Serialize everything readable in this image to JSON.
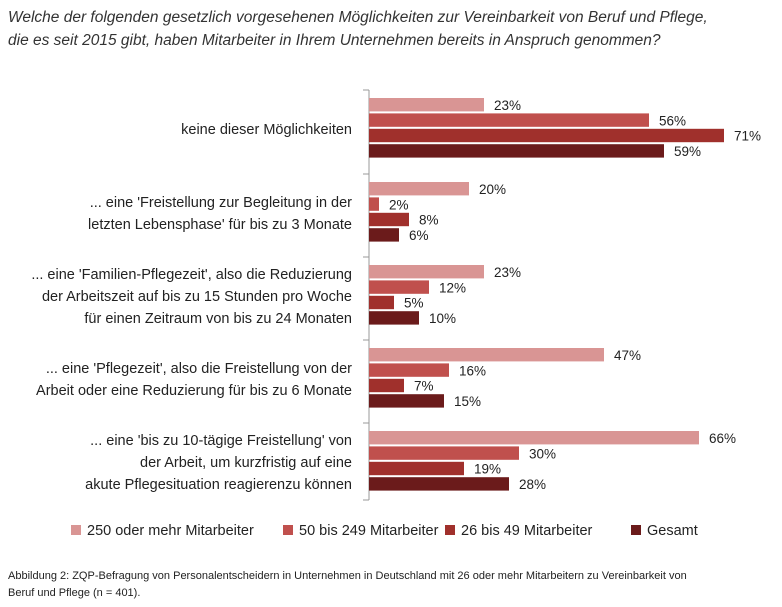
{
  "chart_data": {
    "type": "bar",
    "orientation": "horizontal",
    "title_lines": [
      "Welche der folgenden gesetzlich vorgesehenen Möglichkeiten zur Vereinbarkeit von Beruf und Pflege,",
      "die es seit 2015 gibt, haben Mitarbeiter in Ihrem Unternehmen bereits in Anspruch genommen?"
    ],
    "categories": [
      [
        "keine dieser Möglichkeiten"
      ],
      [
        "... eine 'Freistellung zur Begleitung in der",
        "letzten Lebensphase' für bis zu 3 Monate"
      ],
      [
        "... eine 'Familien-Pflegezeit', also die Reduzierung",
        "der Arbeitszeit auf bis zu 15 Stunden pro Woche",
        "für einen Zeitraum von bis zu 24 Monaten"
      ],
      [
        "... eine 'Pflegezeit', also die Freistellung von der",
        "Arbeit oder eine Reduzierung für bis zu 6 Monate"
      ],
      [
        "... eine 'bis zu 10-tägige Freistellung' von",
        "der Arbeit, um kurzfristig auf eine",
        "akute Pflegesituation reagierenzu können"
      ]
    ],
    "series": [
      {
        "name": "250 oder mehr Mitarbeiter",
        "color": "#d99594",
        "values": [
          23,
          20,
          23,
          47,
          66
        ]
      },
      {
        "name": "50 bis 249 Mitarbeiter",
        "color": "#c0504d",
        "values": [
          56,
          2,
          12,
          16,
          30
        ]
      },
      {
        "name": "26 bis 49 Mitarbeiter",
        "color": "#a0302c",
        "values": [
          71,
          8,
          5,
          7,
          19
        ]
      },
      {
        "name": "Gesamt",
        "color": "#6b1b1b",
        "values": [
          59,
          6,
          10,
          15,
          28
        ]
      }
    ],
    "value_suffix": "%",
    "xlim": [
      0,
      70
    ],
    "grid": false,
    "legend_position": "bottom"
  },
  "caption_lines": [
    "Abbildung 2: ZQP-Befragung von Personalentscheidern in Unternehmen in Deutschland mit 26 oder mehr Mitarbeitern zu Vereinbarkeit von",
    "Beruf und Pflege (n = 401)."
  ]
}
